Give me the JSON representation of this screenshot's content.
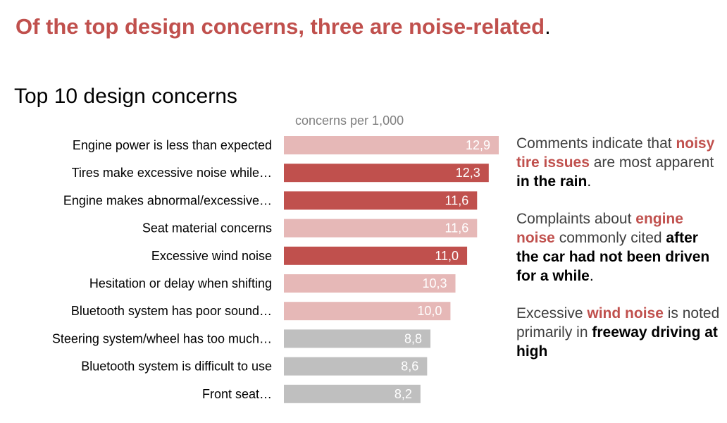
{
  "headline": {
    "text": "Of the top design concerns, three are noise-related",
    "period": "."
  },
  "colors": {
    "headline": "#c0504d",
    "noise_bar": "#c0504d",
    "top_bar": "#e6b8b7",
    "other_bar": "#bfbfbf",
    "bar_label": "#ffffff",
    "annotation_text": "#404040"
  },
  "chart_data": {
    "type": "bar",
    "orientation": "horizontal",
    "title": "Top 10 design concerns",
    "unit_label": "concerns per 1,000",
    "xlim": [
      0,
      12.9
    ],
    "grid": false,
    "legend": "none",
    "categories": [
      "Engine power is less than expected",
      "Tires make excessive noise while…",
      "Engine makes abnormal/excessive…",
      "Seat material concerns",
      "Excessive wind noise",
      "Hesitation or delay when shifting",
      "Bluetooth system has poor sound…",
      "Steering system/wheel has too much…",
      "Bluetooth system is difficult to use",
      "Front seat…"
    ],
    "values": [
      12.9,
      12.3,
      11.6,
      11.6,
      11.0,
      10.3,
      10.0,
      8.8,
      8.6,
      8.2
    ],
    "value_labels": [
      "12,9",
      "12,3",
      "11,6",
      "11,6",
      "11,0",
      "10,3",
      "10,0",
      "8,8",
      "8,6",
      "8,2"
    ],
    "bar_groups": [
      "top",
      "noise",
      "noise",
      "top",
      "noise",
      "top",
      "top",
      "other",
      "other",
      "other"
    ]
  },
  "annotations": [
    {
      "parts": [
        {
          "text": "Comments indicate that ",
          "style": "plain"
        },
        {
          "text": "noisy tire issues",
          "style": "red"
        },
        {
          "text": " are most apparent ",
          "style": "plain"
        },
        {
          "text": "in the rain",
          "style": "black"
        },
        {
          "text": ".",
          "style": "plain"
        }
      ]
    },
    {
      "parts": [
        {
          "text": "Complaints about ",
          "style": "plain"
        },
        {
          "text": "engine noise",
          "style": "red"
        },
        {
          "text": " commonly cited ",
          "style": "plain"
        },
        {
          "text": "after the car had not been driven for a while",
          "style": "black"
        },
        {
          "text": ".",
          "style": "plain"
        }
      ]
    },
    {
      "parts": [
        {
          "text": "Excessive ",
          "style": "plain"
        },
        {
          "text": "wind noise",
          "style": "red"
        },
        {
          "text": " is noted primarily in ",
          "style": "plain"
        },
        {
          "text": "freeway driving at high",
          "style": "black"
        }
      ]
    }
  ]
}
